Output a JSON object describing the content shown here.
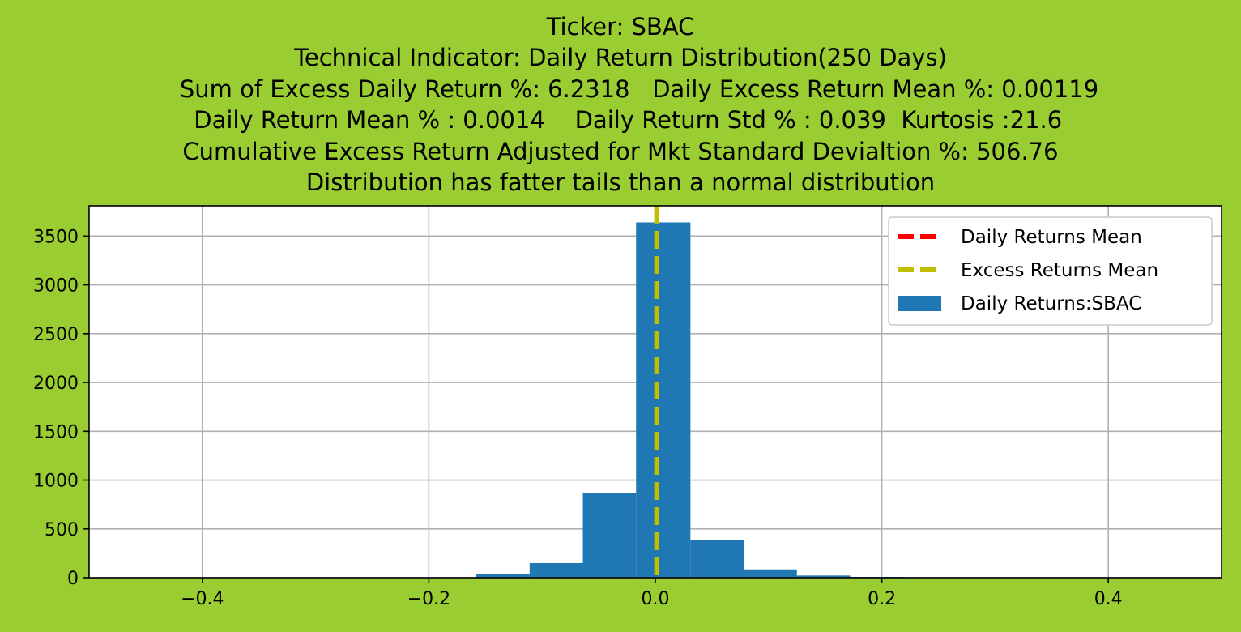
{
  "colors": {
    "figure_background": "#9acd32",
    "plot_background": "#ffffff",
    "bar": "#1f77b4",
    "daily_mean_line": "#ff0000",
    "excess_mean_line": "#bfbf00",
    "grid": "#b0b0b0"
  },
  "chart_data": {
    "type": "bar",
    "title_lines": [
      "Ticker: SBAC",
      "Technical Indicator: Daily Return Distribution(250 Days)",
      "     Sum of Excess Daily Return %: 6.2318   Daily Excess Return Mean %: 0.00119",
      "  Daily Return Mean % : 0.0014    Daily Return Std % : 0.039  Kurtosis :21.6",
      "Cumulative Excess Return Adjusted for Mkt Standard Devialtion %: 506.76",
      "Distribution has fatter tails than a normal distribution"
    ],
    "xlabel": "",
    "ylabel": "",
    "xlim": [
      -0.5,
      0.5
    ],
    "ylim": [
      0,
      3810
    ],
    "x_ticks": [
      -0.4,
      -0.2,
      0.0,
      0.2,
      0.4
    ],
    "x_tick_labels": [
      "−0.4",
      "−0.2",
      "0.0",
      "0.2",
      "0.4"
    ],
    "y_ticks": [
      0,
      500,
      1000,
      1500,
      2000,
      2500,
      3000,
      3500
    ],
    "y_tick_labels": [
      "0",
      "500",
      "1000",
      "1500",
      "2000",
      "2500",
      "3000",
      "3500"
    ],
    "grid": true,
    "legend_position": "top-right",
    "histogram": {
      "name": "Daily Returns:SBAC",
      "bin_edges": [
        -0.158,
        -0.111,
        -0.064,
        -0.017,
        0.031,
        0.078,
        0.125,
        0.172,
        0.219
      ],
      "counts": [
        40,
        150,
        870,
        3640,
        390,
        85,
        22,
        8
      ]
    },
    "vlines": [
      {
        "name": "Daily Returns Mean",
        "x": 0.0014,
        "color": "#ff0000"
      },
      {
        "name": "Excess Returns Mean",
        "x": 0.00119,
        "color": "#bfbf00"
      }
    ],
    "legend": [
      {
        "label": "Daily Returns Mean",
        "kind": "dashed-line",
        "color": "#ff0000"
      },
      {
        "label": "Excess Returns Mean",
        "kind": "dashed-line",
        "color": "#bfbf00"
      },
      {
        "label": "Daily Returns:SBAC",
        "kind": "patch",
        "color": "#1f77b4"
      }
    ]
  }
}
